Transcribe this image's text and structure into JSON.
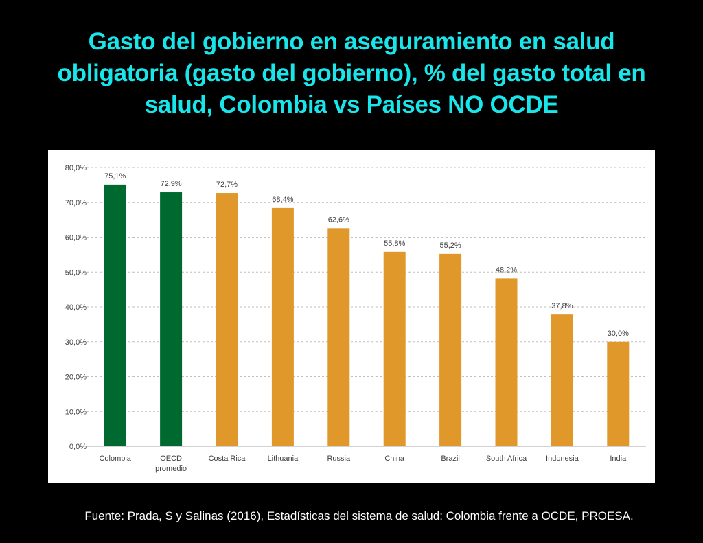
{
  "slide": {
    "title": "Gasto del gobierno en aseguramiento en salud obligatoria (gasto del gobierno), % del gasto total en salud, Colombia vs Países NO OCDE",
    "source": "Fuente: Prada, S y Salinas (2016), Estadísticas del sistema de salud: Colombia frente a OCDE, PROESA."
  },
  "colors": {
    "background": "#000000",
    "title": "#19e6ea",
    "green_bar": "#00692f",
    "orange_bar": "#e0982a",
    "gridline": "#bfbfbf",
    "axis_text": "#404040"
  },
  "chart_data": {
    "type": "bar",
    "title": "",
    "xlabel": "",
    "ylabel": "",
    "categories": [
      [
        "Colombia"
      ],
      [
        "OECD",
        "promedio"
      ],
      [
        "Costa Rica"
      ],
      [
        "Lithuania"
      ],
      [
        "Russia"
      ],
      [
        "China"
      ],
      [
        "Brazil"
      ],
      [
        "South Africa"
      ],
      [
        "Indonesia"
      ],
      [
        "India"
      ]
    ],
    "values": [
      75.1,
      72.9,
      72.7,
      68.4,
      62.6,
      55.8,
      55.2,
      48.2,
      37.8,
      30.0
    ],
    "value_labels": [
      "75,1%",
      "72,9%",
      "72,7%",
      "68,4%",
      "62,6%",
      "55,8%",
      "55,2%",
      "48,2%",
      "37,8%",
      "30,0%"
    ],
    "bar_colors": [
      "green",
      "green",
      "orange",
      "orange",
      "orange",
      "orange",
      "orange",
      "orange",
      "orange",
      "orange"
    ],
    "ylim": [
      0,
      80
    ],
    "yticks": [
      0,
      10,
      20,
      30,
      40,
      50,
      60,
      70,
      80
    ],
    "ytick_labels": [
      "0,0%",
      "10,0%",
      "20,0%",
      "30,0%",
      "40,0%",
      "50,0%",
      "60,0%",
      "70,0%",
      "80,0%"
    ],
    "grid": true,
    "grid_style": "dashed",
    "legend": "none"
  }
}
